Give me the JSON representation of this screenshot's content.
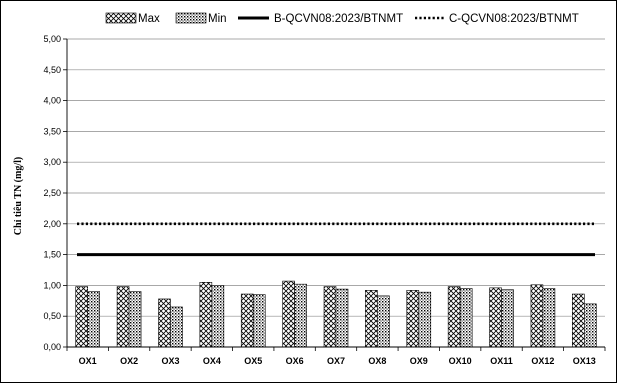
{
  "chart_data": {
    "type": "bar",
    "categories": [
      "OX1",
      "OX2",
      "OX3",
      "OX4",
      "OX5",
      "OX6",
      "OX7",
      "OX8",
      "OX9",
      "OX10",
      "OX11",
      "OX12",
      "OX13"
    ],
    "series": [
      {
        "name": "Max",
        "values": [
          0.98,
          0.98,
          0.78,
          1.05,
          0.86,
          1.07,
          0.98,
          0.92,
          0.92,
          0.98,
          0.96,
          1.01,
          0.86
        ],
        "pattern": "crosshatch"
      },
      {
        "name": "Min",
        "values": [
          0.9,
          0.9,
          0.65,
          1.0,
          0.85,
          1.02,
          0.94,
          0.83,
          0.89,
          0.95,
          0.93,
          0.95,
          0.7
        ],
        "pattern": "dots"
      }
    ],
    "reference_lines": [
      {
        "name": "B-QCVN08:2023/BTNMT",
        "value": 1.5,
        "style": "solid"
      },
      {
        "name": "C-QCVN08:2023/BTNMT",
        "value": 2.0,
        "style": "dotted"
      }
    ],
    "ylabel": "Chỉ tiêu TN (mg/l)",
    "xlabel": "",
    "ylim": [
      0,
      5
    ],
    "yticks": [
      "0,00",
      "0,50",
      "1,00",
      "1,50",
      "2,00",
      "2,50",
      "3,00",
      "3,50",
      "4,00",
      "4,50",
      "5,00"
    ],
    "grid": true,
    "legend_position": "top"
  }
}
